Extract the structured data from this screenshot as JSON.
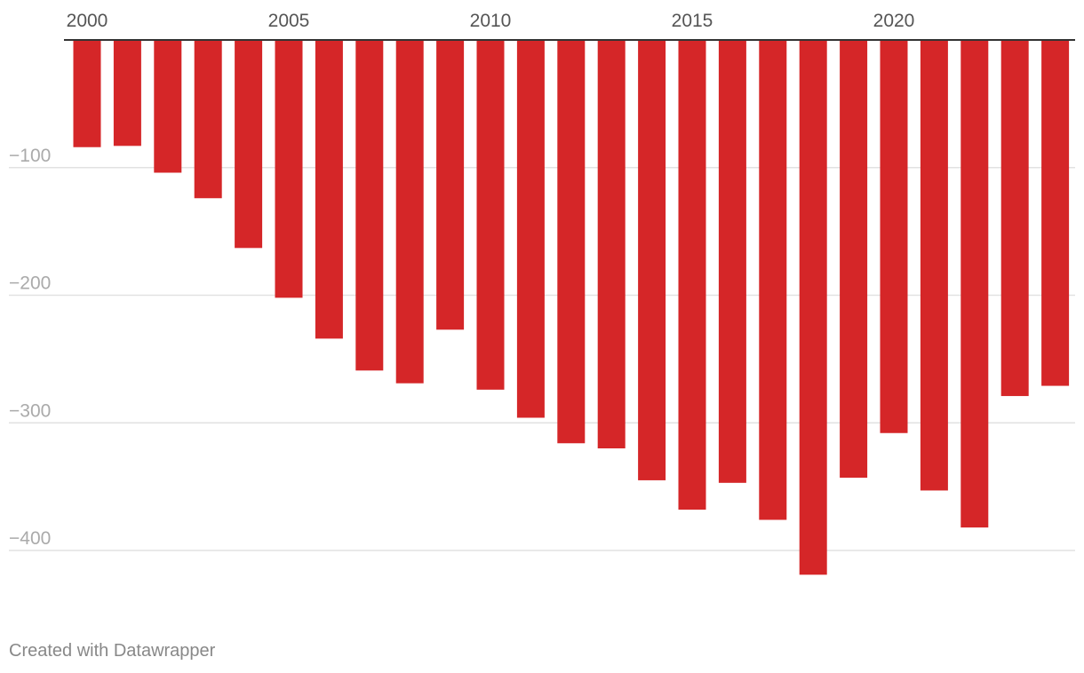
{
  "chart_data": {
    "type": "bar",
    "categories": [
      "2000",
      "2001",
      "2002",
      "2003",
      "2004",
      "2005",
      "2006",
      "2007",
      "2008",
      "2009",
      "2010",
      "2011",
      "2012",
      "2013",
      "2014",
      "2015",
      "2016",
      "2017",
      "2018",
      "2019",
      "2020",
      "2021",
      "2022",
      "2023",
      "2024"
    ],
    "values": [
      -84,
      -83,
      -104,
      -124,
      -163,
      -202,
      -234,
      -259,
      -269,
      -227,
      -274,
      -296,
      -316,
      -320,
      -345,
      -368,
      -347,
      -376,
      -419,
      -343,
      -308,
      -353,
      -382,
      -279,
      -271
    ],
    "x_tick_labels": [
      "2000",
      "2005",
      "2010",
      "2015",
      "2020"
    ],
    "y_ticks": [
      -100,
      -200,
      -300,
      -400
    ],
    "y_tick_labels": [
      "−100",
      "−200",
      "−300",
      "−400"
    ],
    "ylim": [
      -440,
      0
    ],
    "grid": true,
    "colors": {
      "bar": "#d52628",
      "gridline": "#e2e2e2",
      "baseline": "#333333"
    },
    "title": "",
    "xlabel": "",
    "ylabel": ""
  },
  "footer": {
    "credit": "Created with Datawrapper"
  }
}
